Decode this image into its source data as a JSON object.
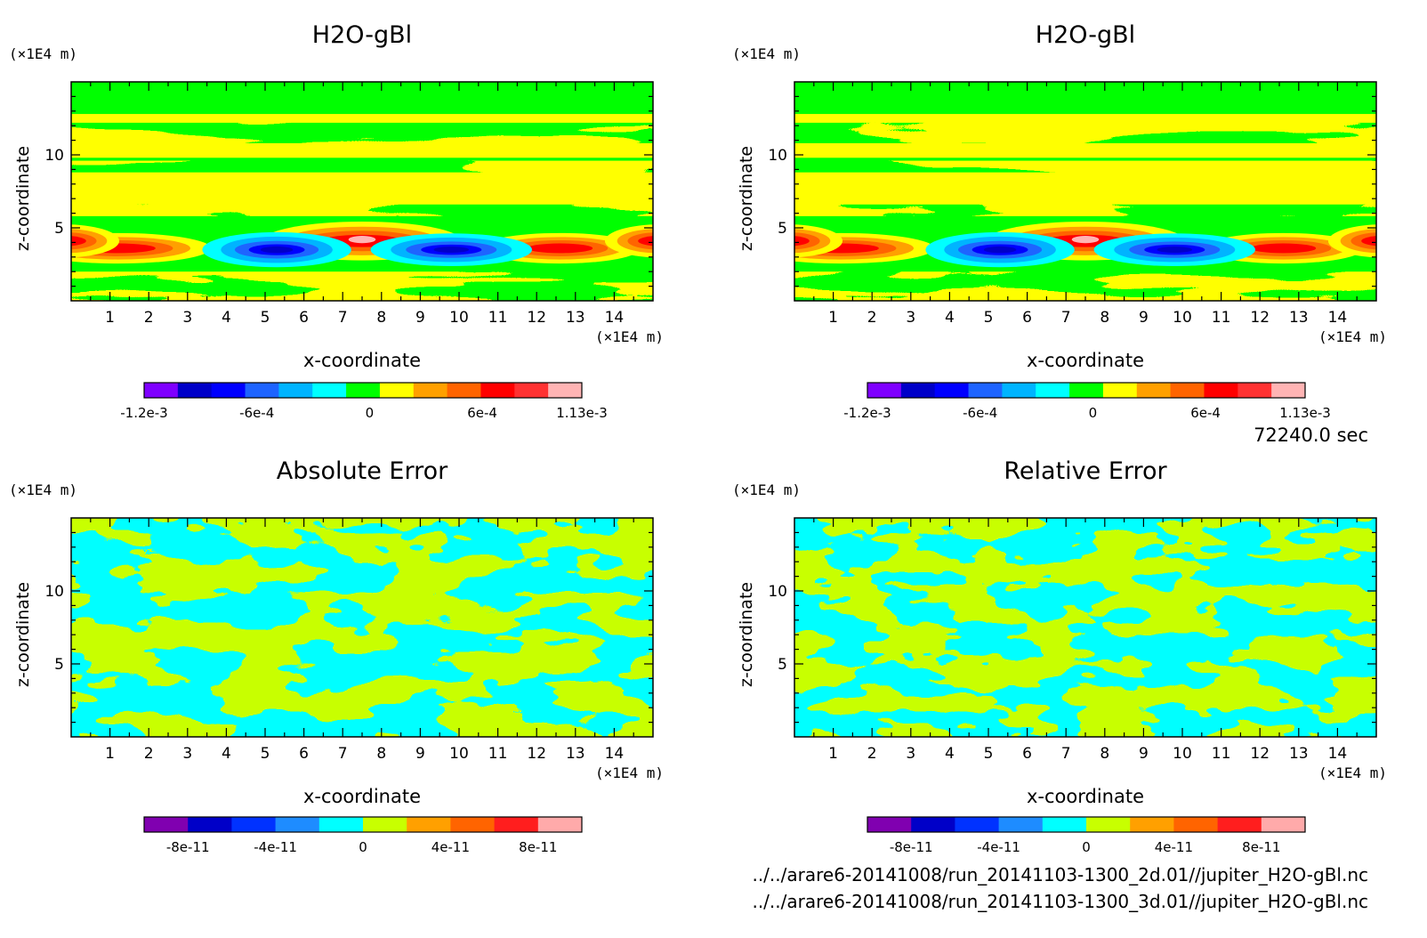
{
  "chart_data": [
    {
      "type": "heatmap",
      "title": "H2O-gBl",
      "xlabel": "x-coordinate",
      "ylabel": "z-coordinate",
      "x_unit": "(×1E4 m)",
      "y_unit": "(×1E4 m)",
      "xlim": [
        0,
        15
      ],
      "ylim": [
        0,
        15
      ],
      "xticks": [
        "1",
        "2",
        "3",
        "4",
        "5",
        "6",
        "7",
        "8",
        "9",
        "10",
        "11",
        "12",
        "13",
        "14"
      ],
      "yticks": [
        "5",
        "10"
      ],
      "colorbar": {
        "colors": [
          "#7f00ff",
          "#0000c8",
          "#0000ff",
          "#1e64ff",
          "#00b4ff",
          "#00ffff",
          "#00ff00",
          "#ffff00",
          "#ffa000",
          "#ff6400",
          "#ff0000",
          "#ff3232",
          "#ffb4b4"
        ],
        "tick_labels": [
          "-1.2e-3",
          "-6e-4",
          "0",
          "6e-4",
          "1.13e-3"
        ],
        "range": [
          -0.0012,
          0.00113
        ]
      }
    },
    {
      "type": "heatmap",
      "title": "H2O-gBl",
      "xlabel": "x-coordinate",
      "ylabel": "z-coordinate",
      "x_unit": "(×1E4 m)",
      "y_unit": "(×1E4 m)",
      "xlim": [
        0,
        15
      ],
      "ylim": [
        0,
        15
      ],
      "xticks": [
        "1",
        "2",
        "3",
        "4",
        "5",
        "6",
        "7",
        "8",
        "9",
        "10",
        "11",
        "12",
        "13",
        "14"
      ],
      "yticks": [
        "5",
        "10"
      ],
      "colorbar": {
        "colors": [
          "#7f00ff",
          "#0000c8",
          "#0000ff",
          "#1e64ff",
          "#00b4ff",
          "#00ffff",
          "#00ff00",
          "#ffff00",
          "#ffa000",
          "#ff6400",
          "#ff0000",
          "#ff3232",
          "#ffb4b4"
        ],
        "tick_labels": [
          "-1.2e-3",
          "-6e-4",
          "0",
          "6e-4",
          "1.13e-3"
        ],
        "range": [
          -0.0012,
          0.00113
        ]
      }
    },
    {
      "type": "heatmap",
      "title": "Absolute Error",
      "xlabel": "x-coordinate",
      "ylabel": "z-coordinate",
      "x_unit": "(×1E4 m)",
      "y_unit": "(×1E4 m)",
      "xlim": [
        0,
        15
      ],
      "ylim": [
        0,
        15
      ],
      "xticks": [
        "1",
        "2",
        "3",
        "4",
        "5",
        "6",
        "7",
        "8",
        "9",
        "10",
        "11",
        "12",
        "13",
        "14"
      ],
      "yticks": [
        "5",
        "10"
      ],
      "colorbar": {
        "colors": [
          "#8000b0",
          "#0000c8",
          "#0032ff",
          "#1e8cff",
          "#00ffff",
          "#c8ff00",
          "#ffa000",
          "#ff6400",
          "#ff1e1e",
          "#ffaaaa"
        ],
        "tick_labels": [
          "-8e-11",
          "-4e-11",
          "0",
          "4e-11",
          "8e-11"
        ],
        "range": [
          -1e-10,
          1e-10
        ]
      }
    },
    {
      "type": "heatmap",
      "title": "Relative Error",
      "xlabel": "x-coordinate",
      "ylabel": "z-coordinate",
      "x_unit": "(×1E4 m)",
      "y_unit": "(×1E4 m)",
      "xlim": [
        0,
        15
      ],
      "ylim": [
        0,
        15
      ],
      "xticks": [
        "1",
        "2",
        "3",
        "4",
        "5",
        "6",
        "7",
        "8",
        "9",
        "10",
        "11",
        "12",
        "13",
        "14"
      ],
      "yticks": [
        "5",
        "10"
      ],
      "colorbar": {
        "colors": [
          "#8000b0",
          "#0000c8",
          "#0032ff",
          "#1e8cff",
          "#00ffff",
          "#c8ff00",
          "#ffa000",
          "#ff6400",
          "#ff1e1e",
          "#ffaaaa"
        ],
        "tick_labels": [
          "-8e-11",
          "-4e-11",
          "0",
          "4e-11",
          "8e-11"
        ],
        "range": [
          -1e-10,
          1e-10
        ]
      }
    }
  ],
  "annotations": {
    "time": "72240.0 sec",
    "file_1": "../../arare6-20141008/run_20141103-1300_2d.01//jupiter_H2O-gBl.nc",
    "file_2": "../../arare6-20141008/run_20141103-1300_3d.01//jupiter_H2O-gBl.nc"
  }
}
